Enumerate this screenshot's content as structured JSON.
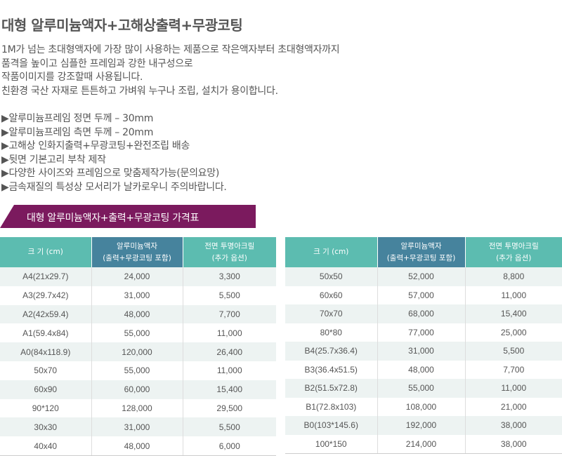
{
  "title": "대형 알루미늄액자+고해상출력+무광코팅",
  "description": [
    "1M가 넘는 초대형액자에 가장 많이 사용하는 제품으로 작은액자부터 초대형액자까지",
    "품격을 높이고 심플한 프레임과 강한 내구성으로",
    "작품이미지를 강조할때 사용됩니다.",
    "친환경 국산 자재로 튼튼하고 가벼워 누구나 조립, 설치가 용이합니다."
  ],
  "features": [
    "▶알루미늄프레임 정면 두께 – 30mm",
    "▶알루미늄프레임 측면 두께 – 20mm",
    "▶고해상 인화지출력+무광코팅+완전조립 배송",
    "▶뒷면 기본고리 부착 제작",
    "▶다양한 사이즈와 프레임으로 맞춤제작가능(문의요망)",
    "▶금속재질의 특성상 모서리가 날카로우니 주의바랍니다."
  ],
  "price_banner": "대형 알루미늄액자+출력+무광코팅 가격표",
  "table_headers": {
    "size": "크 기 (cm)",
    "frame_line1": "알루미늄액자",
    "frame_line2": "(출력+무광코팅 포함)",
    "acrylic_line1": "전면 투명아크릴",
    "acrylic_line2": "(추가 옵션)"
  },
  "colors": {
    "accent_purple": "#7b1a5e",
    "header_teal": "#5cbcb0",
    "header_blue": "#46839d",
    "row_stripe": "#edf3f2"
  },
  "table_left": [
    {
      "size": "A4(21x29.7)",
      "frame": "24,000",
      "acrylic": "3,300"
    },
    {
      "size": "A3(29.7x42)",
      "frame": "31,000",
      "acrylic": "5,500"
    },
    {
      "size": "A2(42x59.4)",
      "frame": "48,000",
      "acrylic": "7,700"
    },
    {
      "size": "A1(59.4x84)",
      "frame": "55,000",
      "acrylic": "11,000"
    },
    {
      "size": "A0(84x118.9)",
      "frame": "120,000",
      "acrylic": "26,400"
    },
    {
      "size": "50x70",
      "frame": "55,000",
      "acrylic": "11,000"
    },
    {
      "size": "60x90",
      "frame": "60,000",
      "acrylic": "15,400"
    },
    {
      "size": "90*120",
      "frame": "128,000",
      "acrylic": "29,500"
    },
    {
      "size": "30x30",
      "frame": "31,000",
      "acrylic": "5,500"
    },
    {
      "size": "40x40",
      "frame": "48,000",
      "acrylic": "6,000"
    }
  ],
  "table_right": [
    {
      "size": "50x50",
      "frame": "52,000",
      "acrylic": "8,800"
    },
    {
      "size": "60x60",
      "frame": "57,000",
      "acrylic": "11,000"
    },
    {
      "size": "70x70",
      "frame": "68,000",
      "acrylic": "15,400"
    },
    {
      "size": "80*80",
      "frame": "77,000",
      "acrylic": "25,000"
    },
    {
      "size": "B4(25.7x36.4)",
      "frame": "31,000",
      "acrylic": "5,500"
    },
    {
      "size": "B3(36.4x51.5)",
      "frame": "48,000",
      "acrylic": "7,700"
    },
    {
      "size": "B2(51.5x72.8)",
      "frame": "55,000",
      "acrylic": "11,000"
    },
    {
      "size": "B1(72.8x103)",
      "frame": "108,000",
      "acrylic": "21,000"
    },
    {
      "size": "B0(103*145.6)",
      "frame": "192,000",
      "acrylic": "38,000"
    },
    {
      "size": "100*150",
      "frame": "214,000",
      "acrylic": "38,000"
    }
  ]
}
